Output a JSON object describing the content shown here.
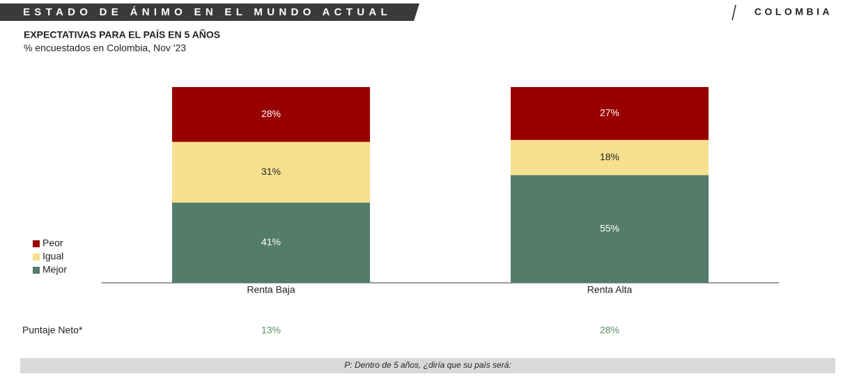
{
  "header": {
    "title": "ESTADO DE ÁNIMO EN EL MUNDO ACTUAL",
    "country": "COLOMBIA"
  },
  "chart_data": {
    "type": "bar",
    "stacked": true,
    "title": "EXPECTATIVAS PARA EL PAÍS EN 5 AÑOS",
    "subtitle": "% encuestados en Colombia, Nov '23",
    "categories": [
      "Renta Baja",
      "Renta Alta"
    ],
    "ylim": [
      0,
      100
    ],
    "series": [
      {
        "name": "Mejor",
        "color": "#537c6a",
        "values": [
          41,
          55
        ],
        "value_labels": [
          "41%",
          "55%"
        ]
      },
      {
        "name": "Igual",
        "color": "#f6e08e",
        "values": [
          31,
          18
        ],
        "value_labels": [
          "31%",
          "18%"
        ]
      },
      {
        "name": "Peor",
        "color": "#990000",
        "values": [
          28,
          27
        ],
        "value_labels": [
          "28%",
          "27%"
        ]
      }
    ]
  },
  "net_score": {
    "label": "Puntaje Neto*",
    "values": [
      13,
      28
    ],
    "value_labels": [
      "13%",
      "28%"
    ],
    "color": "#5a8a6a"
  },
  "footnote": "P: Dentro de 5 años, ¿diría que su país será:"
}
